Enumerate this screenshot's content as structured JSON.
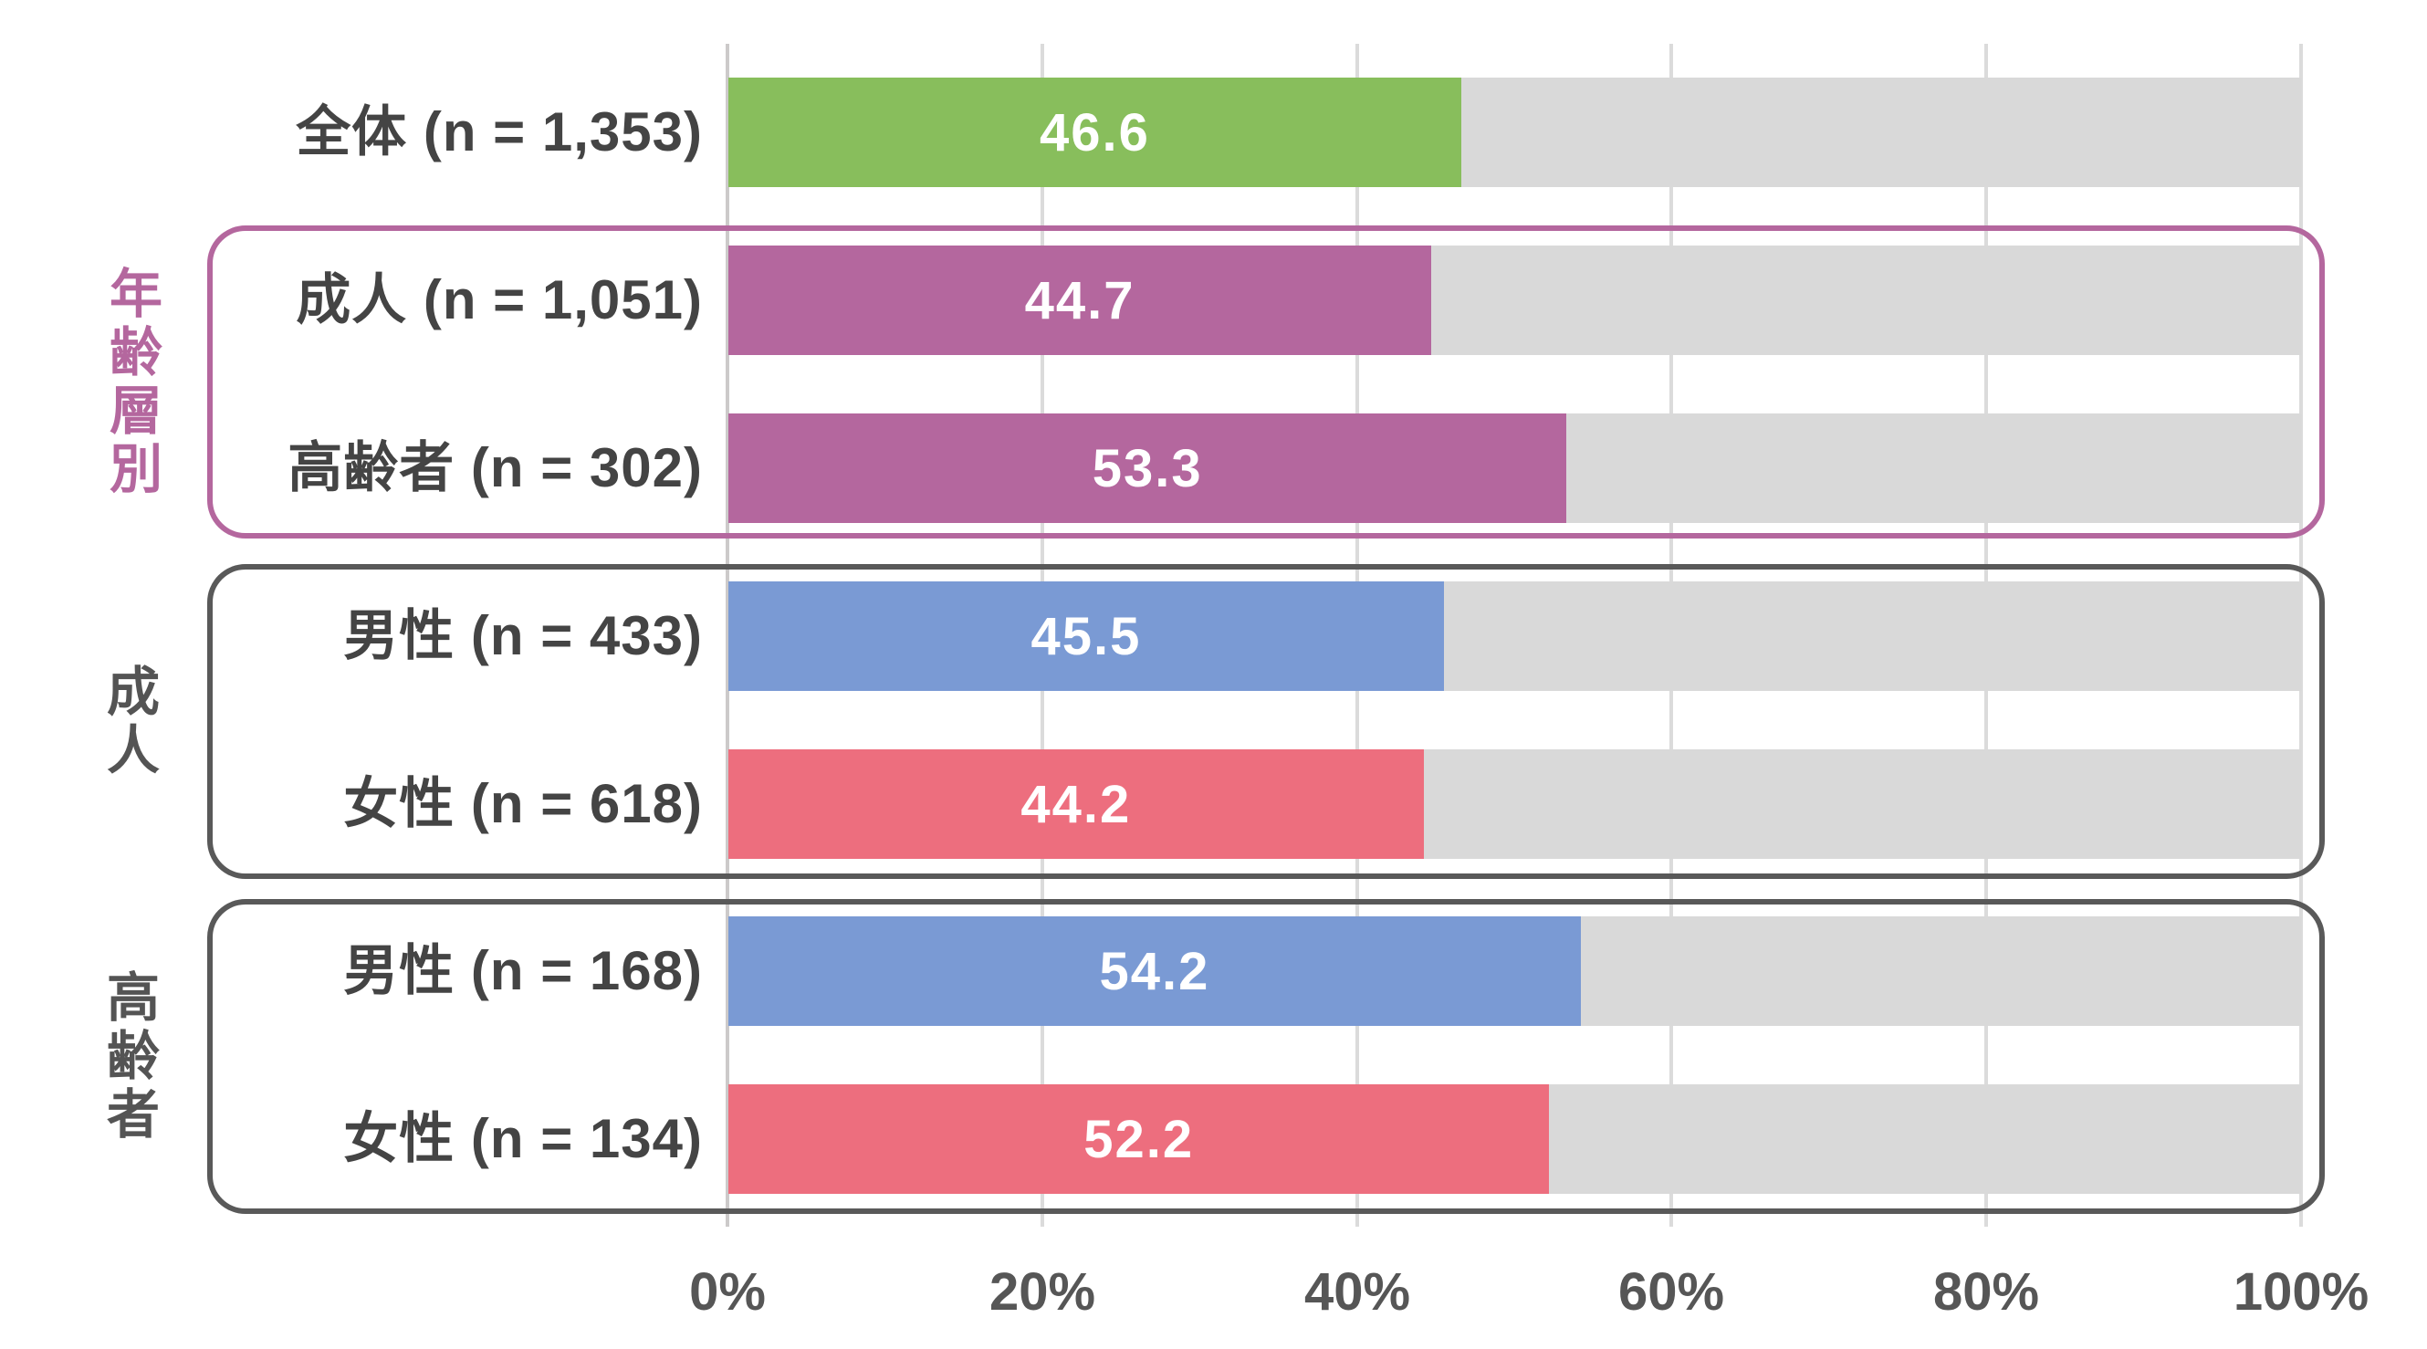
{
  "chart_data": {
    "type": "bar",
    "orientation": "horizontal",
    "title": "",
    "xlabel": "",
    "ylabel": "",
    "xlim": [
      0,
      100
    ],
    "grid": true,
    "legend": "none",
    "track_color": "#d9d9d9",
    "x_axis": {
      "ticks": [
        "0%",
        "20%",
        "40%",
        "60%",
        "80%",
        "100%"
      ],
      "tick_values": [
        0,
        20,
        40,
        60,
        80,
        100
      ]
    },
    "rows": [
      {
        "label": "全体 (n = 1,353)",
        "value": 46.6,
        "value_label": "46.6",
        "color": "#88be5c"
      },
      {
        "label": "成人 (n = 1,051)",
        "value": 44.7,
        "value_label": "44.7",
        "color": "#b4679e"
      },
      {
        "label": "高齢者 (n = 302)",
        "value": 53.3,
        "value_label": "53.3",
        "color": "#b4679e"
      },
      {
        "label": "男性 (n = 433)",
        "value": 45.5,
        "value_label": "45.5",
        "color": "#7a9ad4"
      },
      {
        "label": "女性 (n = 618)",
        "value": 44.2,
        "value_label": "44.2",
        "color": "#ed6e7e"
      },
      {
        "label": "男性 (n = 168)",
        "value": 54.2,
        "value_label": "54.2",
        "color": "#7a9ad4"
      },
      {
        "label": "女性 (n = 134)",
        "value": 52.2,
        "value_label": "52.2",
        "color": "#ed6e7e"
      }
    ],
    "groups": [
      {
        "label": "年齢層別",
        "rows": [
          "成人 (n = 1,051)",
          "高齢者 (n = 302)"
        ],
        "border_color": "#b4679e",
        "label_color": "#b4679e"
      },
      {
        "label": "成人",
        "rows": [
          "男性 (n = 433)",
          "女性 (n = 618)"
        ],
        "border_color": "#595959",
        "label_color": "#545454"
      },
      {
        "label": "高齢者",
        "rows": [
          "男性 (n = 168)",
          "女性 (n = 134)"
        ],
        "border_color": "#595959",
        "label_color": "#545454"
      }
    ]
  }
}
